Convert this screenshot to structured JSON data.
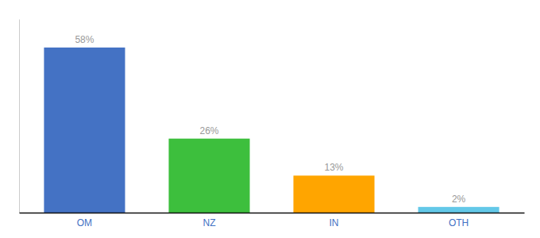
{
  "chart_data": {
    "type": "bar",
    "categories": [
      "OM",
      "NZ",
      "IN",
      "OTH"
    ],
    "values": [
      58,
      26,
      13,
      2
    ],
    "value_labels": [
      "58%",
      "26%",
      "13%",
      "2%"
    ],
    "colors": [
      "#4472C4",
      "#3DBF3D",
      "#FFA500",
      "#63C8E8"
    ],
    "ylim": [
      0,
      68
    ],
    "data_labels": true,
    "tick_labels": "x",
    "grid": false
  }
}
